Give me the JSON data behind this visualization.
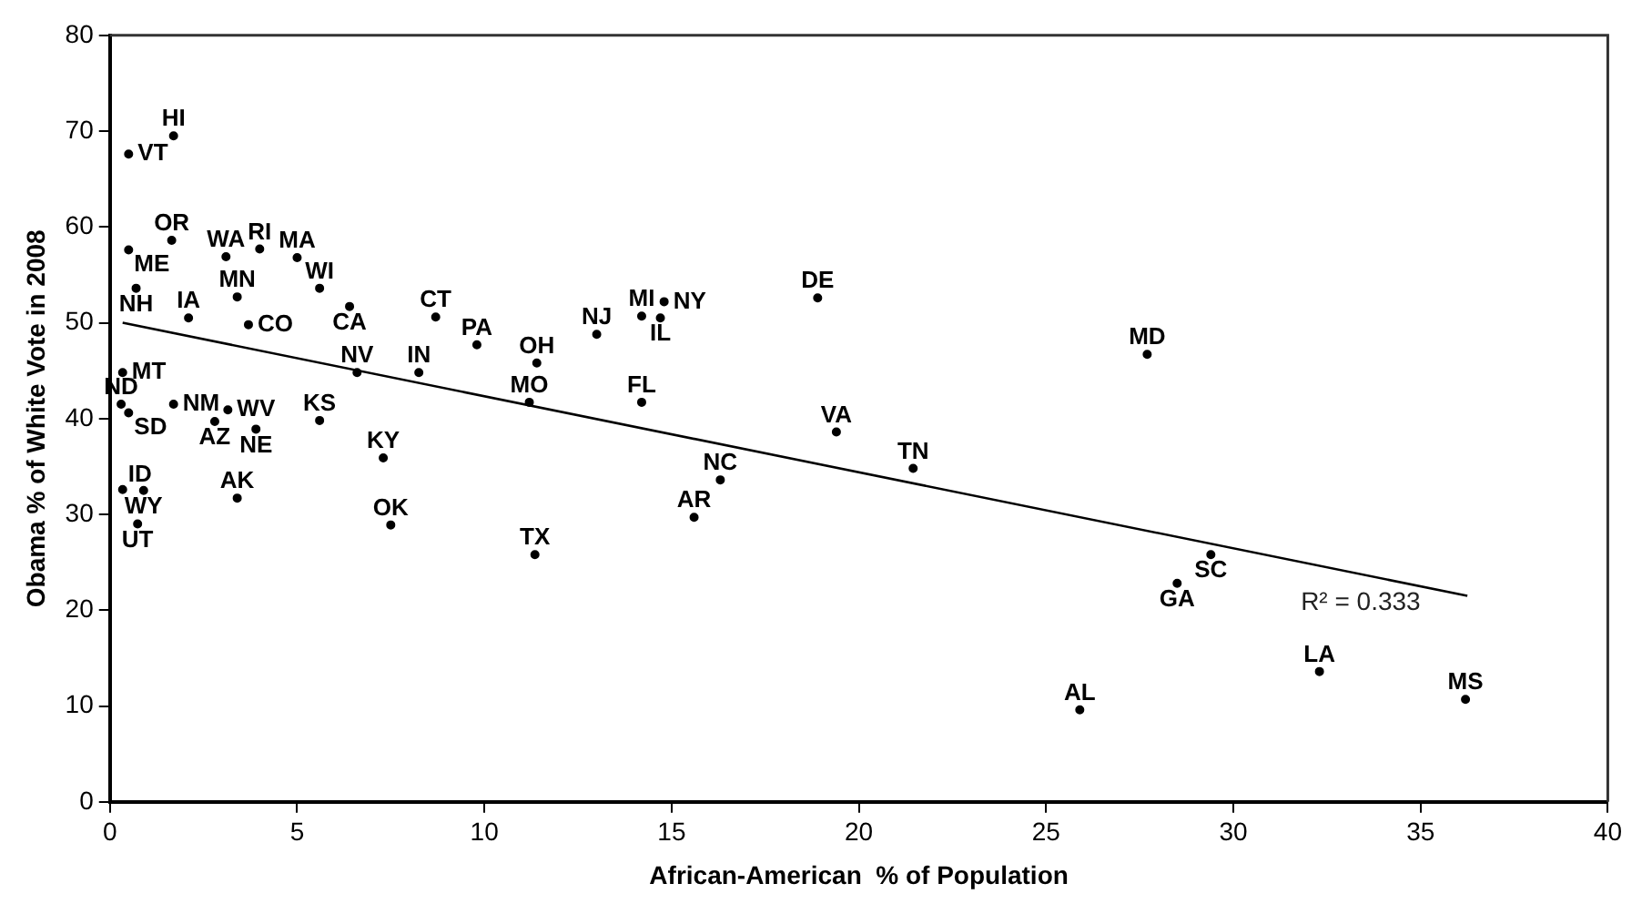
{
  "chart_data": {
    "type": "scatter",
    "xlabel": "African-American  % of Population",
    "ylabel": "Obama % of White Vote in 2008",
    "xlim": [
      0,
      40
    ],
    "xticks": [
      0,
      5,
      10,
      15,
      20,
      25,
      30,
      35,
      40
    ],
    "ylim": [
      0,
      80
    ],
    "yticks": [
      0,
      10,
      20,
      30,
      40,
      50,
      60,
      70,
      80
    ],
    "grid": false,
    "legend": false,
    "series": [
      {
        "color": "#000000",
        "marker": "circle",
        "x": [
          0.5,
          1.7,
          0.5,
          1.65,
          3.1,
          4.0,
          5.0,
          0.7,
          5.6,
          6.4,
          3.4,
          2.1,
          3.7,
          8.7,
          9.8,
          11.4,
          0.34,
          6.6,
          8.25,
          11.2,
          0.3,
          0.5,
          1.7,
          3.15,
          2.8,
          3.9,
          5.6,
          7.3,
          0.34,
          0.9,
          3.4,
          0.74,
          7.5,
          11.35,
          13.0,
          14.2,
          14.7,
          14.8,
          18.9,
          14.2,
          19.4,
          21.45,
          16.3,
          15.6,
          27.7,
          29.4,
          28.5,
          25.9,
          32.3,
          36.2
        ],
        "values": [
          67.6,
          69.5,
          57.6,
          58.6,
          56.9,
          57.7,
          56.8,
          53.6,
          53.6,
          51.7,
          52.7,
          50.5,
          49.8,
          50.6,
          47.7,
          45.8,
          44.8,
          44.8,
          44.8,
          41.7,
          41.5,
          40.6,
          41.5,
          40.9,
          39.7,
          38.9,
          39.8,
          35.9,
          32.6,
          32.5,
          31.7,
          29.0,
          28.9,
          25.8,
          48.8,
          50.7,
          50.5,
          52.2,
          52.6,
          41.7,
          38.6,
          34.8,
          33.6,
          29.7,
          46.7,
          25.8,
          22.8,
          9.6,
          13.6,
          10.7
        ],
        "value_labels": [
          "VT",
          "HI",
          "ME",
          "OR",
          "WA",
          "RI",
          "MA",
          "NH",
          "WI",
          "CA",
          "MN",
          "IA",
          "CO",
          "CT",
          "PA",
          "OH",
          "MT",
          "NV",
          "IN",
          "MO",
          "ND",
          "SD",
          "NM",
          "WV",
          "AZ",
          "NE",
          "KS",
          "KY",
          "ID",
          "WY",
          "AK",
          "UT",
          "OK",
          "TX",
          "NJ",
          "MI",
          "IL",
          "NY",
          "DE",
          "FL",
          "VA",
          "TN",
          "NC",
          "AR",
          "MD",
          "SC",
          "GA",
          "AL",
          "LA",
          "MS"
        ]
      },
      {
        "type": "line",
        "color": "#000000",
        "marker": "none",
        "line_style": "solid",
        "x": [
          0.34,
          36.25
        ],
        "values": [
          50.0,
          21.5
        ]
      }
    ],
    "annotations": [
      "R² = 0.333"
    ]
  }
}
